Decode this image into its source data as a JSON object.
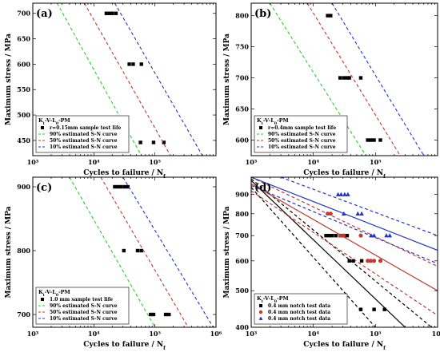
{
  "chart_data": [
    {
      "type": "scatter",
      "panel_label": "(a)",
      "xlabel": "Cycles to failure / N",
      "xlabel_sub": "f",
      "ylabel": "Maximum stress / MPa",
      "xscale": "log",
      "xlim": [
        1000,
        1000000
      ],
      "ylim": [
        420,
        720
      ],
      "yticks": [
        450,
        500,
        550,
        600,
        650,
        700
      ],
      "xticks": [
        1000,
        10000,
        100000
      ],
      "legend": {
        "position": "bottom-left",
        "title": "K",
        "title_sub": "t",
        "title_rest": "-V-L",
        "title_sub2": "0",
        "title_tail": "-PM",
        "entries": [
          "r=0.15mm sample test life",
          "90% estimated S-N curve",
          "50% estimated S-N curve",
          "10% estimated S-N curve"
        ]
      },
      "series": [
        {
          "name": "r=0.15mm sample test life",
          "marker": "square",
          "color": "#000000",
          "points": [
            [
              16000,
              700
            ],
            [
              18000,
              700
            ],
            [
              20000,
              700
            ],
            [
              23000,
              700
            ],
            [
              38000,
              600
            ],
            [
              44000,
              600
            ],
            [
              60000,
              600
            ],
            [
              58000,
              446
            ],
            [
              95000,
              446
            ],
            [
              140000,
              446
            ]
          ]
        },
        {
          "name": "90% estimated S-N curve",
          "line": "dashed",
          "color": "#2bcc2b",
          "points": [
            [
              2500,
              720
            ],
            [
              60000,
              420
            ]
          ]
        },
        {
          "name": "50% estimated S-N curve",
          "line": "dashed",
          "color": "#c0392b",
          "points": [
            [
              7000,
              720
            ],
            [
              180000,
              420
            ]
          ]
        },
        {
          "name": "10% estimated S-N curve",
          "line": "dashed",
          "color": "#2233cc",
          "points": [
            [
              22000,
              720
            ],
            [
              600000,
              420
            ]
          ]
        }
      ]
    },
    {
      "type": "scatter",
      "panel_label": "(b)",
      "xlabel": "Cycles to failure / N",
      "xlabel_sub": "f",
      "ylabel": "Maximum stress / MPa",
      "xscale": "log",
      "xlim": [
        1000,
        1000000
      ],
      "ylim": [
        575,
        820
      ],
      "yticks": [
        600,
        650,
        700,
        750,
        800
      ],
      "xticks": [
        1000,
        10000,
        100000
      ],
      "legend": {
        "position": "bottom-left",
        "title": "K",
        "title_sub": "t",
        "title_rest": "-V-L",
        "title_sub2": "0",
        "title_tail": "-PM",
        "entries": [
          "r=0.4mm sample test life",
          "90% estimated S-N curve",
          "50% estimated S-N curve",
          "10% estimated S-N curve"
        ]
      },
      "series": [
        {
          "name": "r=0.4mm sample test life",
          "marker": "square",
          "color": "#000000",
          "points": [
            [
              17000,
              800
            ],
            [
              19000,
              800
            ],
            [
              27000,
              700
            ],
            [
              31000,
              700
            ],
            [
              35000,
              700
            ],
            [
              38000,
              700
            ],
            [
              58000,
              700
            ],
            [
              75000,
              600
            ],
            [
              84000,
              600
            ],
            [
              95000,
              600
            ],
            [
              120000,
              600
            ]
          ]
        },
        {
          "name": "90% estimated S-N curve",
          "line": "dashed",
          "color": "#2bcc2b",
          "points": [
            [
              2000,
              820
            ],
            [
              70000,
              575
            ]
          ]
        },
        {
          "name": "50% estimated S-N curve",
          "line": "dashed",
          "color": "#c0392b",
          "points": [
            [
              8000,
              820
            ],
            [
              250000,
              575
            ]
          ]
        },
        {
          "name": "10% estimated S-N curve",
          "line": "dashed",
          "color": "#2233cc",
          "points": [
            [
              20000,
              820
            ],
            [
              600000,
              575
            ]
          ]
        }
      ]
    },
    {
      "type": "scatter",
      "panel_label": "(c)",
      "xlabel": "Cycles to failure / N",
      "xlabel_sub": "f",
      "ylabel": "Maximum stress / MPa",
      "xscale": "log",
      "xlim": [
        1000,
        1000000
      ],
      "ylim": [
        680,
        915
      ],
      "yticks": [
        700,
        800,
        900
      ],
      "xticks": [
        1000,
        10000,
        100000,
        1000000
      ],
      "legend": {
        "position": "bottom-left",
        "title": "K",
        "title_sub": "t",
        "title_rest": "-V-L",
        "title_sub2": "0",
        "title_tail": "-PM",
        "entries": [
          "1.0 mm sample test life",
          "90% estimated S-N curve",
          "50% estimated S-N curve",
          "10% estimated S-N curve"
        ]
      },
      "series": [
        {
          "name": "1.0 mm sample test life",
          "marker": "square",
          "color": "#000000",
          "points": [
            [
              22000,
              900
            ],
            [
              25000,
              900
            ],
            [
              28000,
              900
            ],
            [
              32000,
              900
            ],
            [
              36000,
              900
            ],
            [
              31000,
              800
            ],
            [
              52000,
              800
            ],
            [
              60000,
              800
            ],
            [
              85000,
              700
            ],
            [
              95000,
              700
            ],
            [
              150000,
              700
            ],
            [
              170000,
              700
            ]
          ]
        },
        {
          "name": "90% estimated S-N curve",
          "line": "dashed",
          "color": "#2bcc2b",
          "points": [
            [
              4000,
              915
            ],
            [
              100000,
              680
            ]
          ]
        },
        {
          "name": "50% estimated S-N curve",
          "line": "dashed",
          "color": "#c0392b",
          "points": [
            [
              13000,
              915
            ],
            [
              350000,
              680
            ]
          ]
        },
        {
          "name": "10% estimated S-N curve",
          "line": "dashed",
          "color": "#2233cc",
          "points": [
            [
              30000,
              915
            ],
            [
              900000,
              680
            ]
          ]
        }
      ]
    },
    {
      "type": "scatter",
      "panel_label": "(d)",
      "xlabel": "Cycles to failure / N",
      "xlabel_sub": "f",
      "ylabel": "Maximum stress / MPa",
      "xscale": "log",
      "yscale": "log",
      "xlim": [
        1000,
        1000000
      ],
      "ylim": [
        400,
        1000
      ],
      "yticks": [
        400,
        500,
        600,
        700,
        800,
        900
      ],
      "xticks": [
        1000,
        10000,
        100000,
        1000000
      ],
      "legend": {
        "position": "bottom-left",
        "title": "K",
        "title_sub": "t",
        "title_rest": "-V-L",
        "title_sub2": "0",
        "title_tail": "-PM",
        "entries": [
          "0.4  mm notch test data",
          "0.4  mm notch test data",
          "0.4  mm notch test data"
        ]
      },
      "series": [
        {
          "name": "0.4  mm notch test data",
          "marker": "square",
          "color": "#000000",
          "points": [
            [
              16000,
              700
            ],
            [
              18000,
              700
            ],
            [
              20000,
              700
            ],
            [
              23000,
              700
            ],
            [
              38000,
              600
            ],
            [
              44000,
              600
            ],
            [
              60000,
              600
            ],
            [
              58000,
              446
            ],
            [
              95000,
              446
            ],
            [
              140000,
              446
            ],
            [
              27000,
              700
            ],
            [
              31000,
              700
            ],
            [
              35000,
              700
            ]
          ]
        },
        {
          "name": "0.4  mm notch test data",
          "marker": "circle",
          "color": "#c0392b",
          "points": [
            [
              17000,
              800
            ],
            [
              19000,
              800
            ],
            [
              27000,
              700
            ],
            [
              31000,
              700
            ],
            [
              58000,
              700
            ],
            [
              75000,
              600
            ],
            [
              84000,
              600
            ],
            [
              95000,
              600
            ],
            [
              120000,
              600
            ]
          ]
        },
        {
          "name": "0.4  mm notch test data",
          "marker": "triangle",
          "color": "#2233cc",
          "points": [
            [
              25000,
              900
            ],
            [
              28000,
              900
            ],
            [
              32000,
              900
            ],
            [
              36000,
              900
            ],
            [
              31000,
              800
            ],
            [
              52000,
              800
            ],
            [
              60000,
              800
            ],
            [
              85000,
              700
            ],
            [
              95000,
              700
            ],
            [
              150000,
              700
            ],
            [
              170000,
              700
            ]
          ]
        }
      ],
      "lines": [
        {
          "color": "#000000",
          "style": "solid",
          "points": [
            [
              1000,
              980
            ],
            [
              300000,
              400
            ]
          ]
        },
        {
          "color": "#000000",
          "style": "dashed",
          "points": [
            [
              1000,
              940
            ],
            [
              100000,
              400
            ]
          ]
        },
        {
          "color": "#000000",
          "style": "dashed",
          "points": [
            [
              1000,
              990
            ],
            [
              800000,
              400
            ]
          ]
        },
        {
          "color": "#c0392b",
          "style": "solid",
          "points": [
            [
              1000,
              960
            ],
            [
              1000000,
              500
            ]
          ]
        },
        {
          "color": "#c0392b",
          "style": "dashed",
          "points": [
            [
              1000,
              920
            ],
            [
              1000000,
              430
            ]
          ]
        },
        {
          "color": "#c0392b",
          "style": "dashed",
          "points": [
            [
              1000,
              1000
            ],
            [
              1000000,
              580
            ]
          ]
        },
        {
          "color": "#2233cc",
          "style": "solid",
          "points": [
            [
              1000,
              1000
            ],
            [
              1000000,
              640
            ]
          ]
        },
        {
          "color": "#2233cc",
          "style": "dashed",
          "points": [
            [
              1000,
              950
            ],
            [
              1000000,
              590
            ]
          ]
        },
        {
          "color": "#2233cc",
          "style": "dashed",
          "points": [
            [
              3000,
              1000
            ],
            [
              1000000,
              700
            ]
          ]
        }
      ]
    }
  ]
}
